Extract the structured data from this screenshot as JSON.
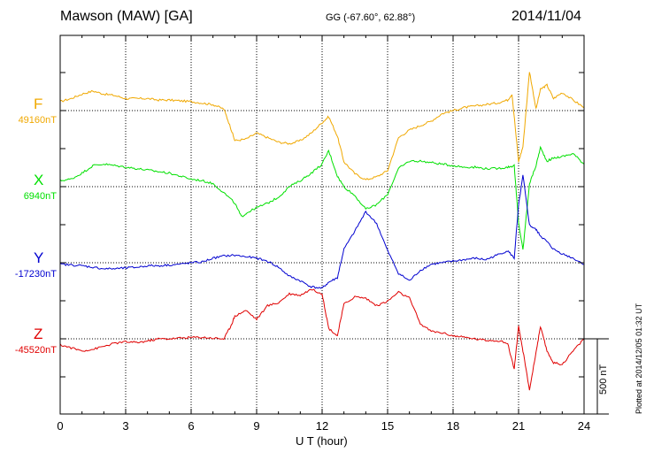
{
  "header": {
    "station": "Mawson (MAW)  [GA]",
    "coords": "GG (-67.60°,  62.88°)",
    "date": "2014/11/04"
  },
  "footer": {
    "scale_label": "500 nT",
    "plotted": "Plotted at 2014/12/05 01:32 UT"
  },
  "chart_data": {
    "type": "line",
    "xlabel": "U T (hour)",
    "xlim": [
      0,
      24
    ],
    "xticks": [
      0,
      3,
      6,
      9,
      12,
      15,
      18,
      21,
      24
    ],
    "xtick_labels": [
      "0",
      "3",
      "6",
      "9",
      "12",
      "15",
      "18",
      "21",
      "24"
    ],
    "grid": true,
    "scale_bar_nT": 500,
    "series": [
      {
        "name": "F",
        "baseline_label": "49160nT",
        "baseline_nT": 49160,
        "color": "#f0a800",
        "x": [
          0,
          0.5,
          1,
          1.5,
          2,
          2.5,
          3,
          3.5,
          4,
          4.5,
          5,
          5.5,
          6,
          6.5,
          7,
          7.5,
          7.8,
          8,
          8.5,
          9,
          9.5,
          10,
          10.5,
          11,
          11.5,
          12,
          12.3,
          12.7,
          13,
          13.5,
          14,
          14.5,
          15,
          15.5,
          16,
          16.5,
          17,
          17.5,
          18,
          18.5,
          19,
          19.5,
          20,
          20.5,
          20.7,
          21,
          21.2,
          21.5,
          21.8,
          22,
          22.3,
          22.6,
          23,
          23.5,
          24
        ],
        "y": [
          49220,
          49240,
          49270,
          49290,
          49270,
          49260,
          49240,
          49240,
          49240,
          49230,
          49230,
          49225,
          49220,
          49210,
          49200,
          49170,
          49050,
          48960,
          48970,
          49010,
          48980,
          48950,
          48940,
          48960,
          49010,
          49080,
          49120,
          48990,
          48820,
          48740,
          48700,
          48720,
          48760,
          48980,
          49030,
          49060,
          49090,
          49140,
          49160,
          49180,
          49190,
          49200,
          49210,
          49230,
          49270,
          48820,
          48920,
          49420,
          49170,
          49300,
          49330,
          49240,
          49280,
          49230,
          49180
        ]
      },
      {
        "name": "X",
        "baseline_label": "6940nT",
        "baseline_nT": 6940,
        "color": "#00e000",
        "x": [
          0,
          0.5,
          1,
          1.5,
          2,
          2.5,
          3,
          3.5,
          4,
          4.5,
          5,
          5.5,
          6,
          6.5,
          7,
          7.5,
          8,
          8.3,
          8.6,
          9,
          9.5,
          10,
          10.5,
          11,
          11.5,
          12,
          12.3,
          12.7,
          13,
          13.5,
          14,
          14.5,
          15,
          15.5,
          16,
          16.5,
          17,
          17.5,
          18,
          18.5,
          19,
          19.5,
          20,
          20.5,
          20.8,
          21,
          21.2,
          21.5,
          21.8,
          22,
          22.3,
          22.6,
          23,
          23.5,
          24
        ],
        "y": [
          6980,
          6990,
          7030,
          7080,
          7090,
          7080,
          7070,
          7060,
          7050,
          7040,
          7030,
          7010,
          6990,
          6980,
          6960,
          6900,
          6830,
          6740,
          6770,
          6800,
          6830,
          6870,
          6940,
          6980,
          7030,
          7090,
          7180,
          7010,
          6940,
          6880,
          6790,
          6820,
          6890,
          7060,
          7110,
          7110,
          7100,
          7090,
          7080,
          7070,
          7070,
          7060,
          7060,
          7070,
          7080,
          6700,
          6520,
          6960,
          7080,
          7200,
          7110,
          7130,
          7140,
          7160,
          7090
        ]
      },
      {
        "name": "Y",
        "baseline_label": "-17230nT",
        "baseline_nT": -17230,
        "color": "#0000d0",
        "x": [
          0,
          0.5,
          1,
          1.5,
          2,
          2.5,
          3,
          3.5,
          4,
          4.5,
          5,
          5.5,
          6,
          6.5,
          7,
          7.5,
          8,
          8.5,
          9,
          9.5,
          10,
          10.5,
          11,
          11.5,
          12,
          12.3,
          12.7,
          13,
          13.5,
          14,
          14.5,
          15,
          15.5,
          16,
          16.5,
          17,
          17.5,
          18,
          18.5,
          19,
          19.5,
          20,
          20.5,
          20.8,
          21,
          21.2,
          21.5,
          21.8,
          22,
          22.3,
          22.6,
          23,
          23.5,
          24
        ],
        "y": [
          -17240,
          -17245,
          -17250,
          -17260,
          -17270,
          -17270,
          -17265,
          -17260,
          -17250,
          -17250,
          -17245,
          -17240,
          -17230,
          -17225,
          -17200,
          -17185,
          -17180,
          -17190,
          -17200,
          -17220,
          -17260,
          -17320,
          -17350,
          -17390,
          -17400,
          -17360,
          -17330,
          -17140,
          -17020,
          -16890,
          -16970,
          -17150,
          -17300,
          -17350,
          -17280,
          -17240,
          -17230,
          -17220,
          -17210,
          -17200,
          -17210,
          -17180,
          -17150,
          -17200,
          -16850,
          -16650,
          -16980,
          -17010,
          -17050,
          -17090,
          -17140,
          -17170,
          -17200,
          -17240
        ]
      },
      {
        "name": "Z",
        "baseline_label": "-45520nT",
        "baseline_nT": -45520,
        "color": "#e00000",
        "x": [
          0,
          0.5,
          1,
          1.5,
          2,
          2.5,
          3,
          3.5,
          4,
          4.5,
          5,
          5.5,
          6,
          6.5,
          7,
          7.5,
          7.8,
          8,
          8.5,
          9,
          9.5,
          10,
          10.5,
          11,
          11.5,
          12,
          12.3,
          12.7,
          13,
          13.5,
          14,
          14.5,
          15,
          15.5,
          16,
          16.5,
          17,
          17.5,
          18,
          18.5,
          19,
          19.5,
          20,
          20.5,
          20.8,
          21,
          21.2,
          21.5,
          21.8,
          22,
          22.3,
          22.6,
          23,
          23.5,
          24
        ],
        "y": [
          -45560,
          -45580,
          -45600,
          -45590,
          -45570,
          -45550,
          -45540,
          -45545,
          -45535,
          -45520,
          -45520,
          -45515,
          -45510,
          -45510,
          -45515,
          -45520,
          -45440,
          -45370,
          -45330,
          -45390,
          -45300,
          -45280,
          -45220,
          -45230,
          -45190,
          -45220,
          -45450,
          -45500,
          -45290,
          -45240,
          -45250,
          -45300,
          -45270,
          -45210,
          -45250,
          -45420,
          -45470,
          -45480,
          -45500,
          -45510,
          -45520,
          -45530,
          -45530,
          -45550,
          -45720,
          -45440,
          -45600,
          -45860,
          -45610,
          -45440,
          -45600,
          -45680,
          -45690,
          -45600,
          -45520
        ]
      }
    ]
  }
}
